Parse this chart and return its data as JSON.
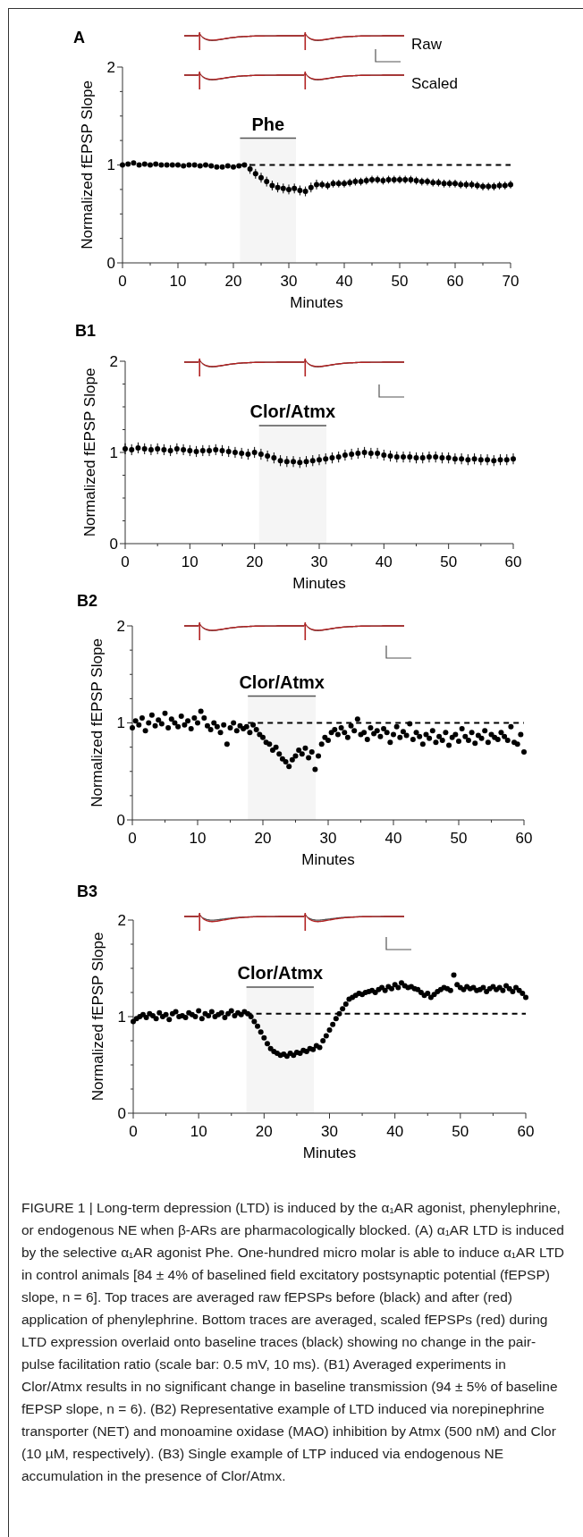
{
  "chart_data": [
    {
      "type": "scatter",
      "title": "A",
      "xlabel": "Minutes",
      "ylabel": "Normalized fEPSP Slope",
      "color": "#000000",
      "marker": "circle",
      "x": [
        0,
        1,
        2,
        3,
        4,
        5,
        6,
        7,
        8,
        9,
        10,
        11,
        12,
        13,
        14,
        15,
        16,
        17,
        18,
        19,
        20,
        21,
        22,
        23,
        24,
        25,
        26,
        27,
        28,
        29,
        30,
        31,
        32,
        33,
        34,
        35,
        36,
        37,
        38,
        39,
        40,
        41,
        42,
        43,
        44,
        45,
        46,
        47,
        48,
        49,
        50,
        51,
        52,
        53,
        54,
        55,
        56,
        57,
        58,
        59,
        60,
        61,
        62,
        63,
        64,
        65,
        66,
        67,
        68,
        69,
        70
      ],
      "values": [
        1.0,
        1.01,
        1.02,
        1.0,
        1.01,
        1.0,
        1.01,
        1.0,
        1.0,
        1.0,
        1.0,
        0.99,
        1.0,
        1.0,
        0.99,
        1.0,
        0.99,
        0.98,
        0.98,
        0.99,
        0.98,
        0.99,
        1.0,
        0.96,
        0.91,
        0.87,
        0.83,
        0.79,
        0.77,
        0.76,
        0.75,
        0.76,
        0.74,
        0.73,
        0.77,
        0.8,
        0.8,
        0.79,
        0.81,
        0.81,
        0.81,
        0.82,
        0.83,
        0.83,
        0.84,
        0.85,
        0.85,
        0.84,
        0.85,
        0.85,
        0.85,
        0.85,
        0.85,
        0.84,
        0.83,
        0.83,
        0.82,
        0.82,
        0.81,
        0.81,
        0.81,
        0.8,
        0.8,
        0.8,
        0.79,
        0.78,
        0.78,
        0.78,
        0.79,
        0.79,
        0.8
      ],
      "errors": [
        null,
        null,
        null,
        null,
        null,
        null,
        null,
        null,
        null,
        null,
        null,
        null,
        null,
        null,
        null,
        null,
        null,
        null,
        null,
        null,
        null,
        null,
        null,
        0.05,
        0.05,
        0.05,
        0.05,
        0.05,
        0.05,
        0.05,
        0.05,
        0.05,
        0.05,
        0.05,
        0.05,
        0.05,
        0.04,
        0.04,
        0.04,
        0.04,
        0.04,
        0.04,
        0.04,
        0.04,
        0.04,
        0.04,
        0.04,
        0.04,
        0.04,
        0.04,
        0.04,
        0.04,
        0.04,
        0.04,
        0.04,
        0.04,
        0.04,
        0.04,
        0.04,
        0.04,
        0.04,
        0.04,
        0.04,
        0.04,
        0.04,
        0.04,
        0.04,
        0.04,
        0.04,
        0.04,
        0.04
      ],
      "xlim": [
        0,
        70
      ],
      "ylim": [
        0,
        2
      ],
      "xticks": [
        0,
        {
          "value": 5,
          "label": null
        },
        10,
        {
          "value": 15,
          "label": null
        },
        20,
        {
          "value": 25,
          "label": null
        },
        30,
        {
          "value": 35,
          "label": null
        },
        40,
        {
          "value": 45,
          "label": null
        },
        50,
        {
          "value": 55,
          "label": null
        },
        60,
        {
          "value": 65,
          "label": null
        },
        70
      ],
      "yticks": [
        0,
        {
          "value": 0.25,
          "label": null
        },
        {
          "value": 0.5,
          "label": null
        },
        {
          "value": 0.75,
          "label": null
        },
        1,
        {
          "value": 1.25,
          "label": null
        },
        {
          "value": 1.5,
          "label": null
        },
        {
          "value": 1.75,
          "label": null
        },
        2
      ],
      "ref_lines": [
        {
          "axis": "y",
          "value": 1,
          "line_style": "dashed"
        }
      ],
      "bands": [
        {
          "axis": "x",
          "from": 21.2,
          "to": 31.3,
          "label": "Phe"
        }
      ],
      "annotations": [
        "Raw",
        "Scaled"
      ]
    },
    {
      "type": "scatter",
      "title": "B1",
      "xlabel": "Minutes",
      "ylabel": "Normalized fEPSP Slope",
      "color": "#000000",
      "marker": "circle",
      "x": [
        0,
        1,
        2,
        3,
        4,
        5,
        6,
        7,
        8,
        9,
        10,
        11,
        12,
        13,
        14,
        15,
        16,
        17,
        18,
        19,
        20,
        21,
        22,
        23,
        24,
        25,
        26,
        27,
        28,
        29,
        30,
        31,
        32,
        33,
        34,
        35,
        36,
        37,
        38,
        39,
        40,
        41,
        42,
        43,
        44,
        45,
        46,
        47,
        48,
        49,
        50,
        51,
        52,
        53,
        54,
        55,
        56,
        57,
        58,
        59,
        60
      ],
      "values": [
        1.04,
        1.03,
        1.05,
        1.04,
        1.03,
        1.04,
        1.03,
        1.02,
        1.04,
        1.03,
        1.02,
        1.01,
        1.02,
        1.02,
        1.03,
        1.02,
        1.01,
        1.0,
        0.99,
        0.98,
        1.0,
        0.98,
        0.96,
        0.94,
        0.91,
        0.9,
        0.9,
        0.89,
        0.9,
        0.91,
        0.92,
        0.93,
        0.94,
        0.95,
        0.97,
        0.98,
        0.99,
        1.0,
        0.99,
        0.99,
        0.97,
        0.96,
        0.95,
        0.95,
        0.95,
        0.94,
        0.94,
        0.95,
        0.95,
        0.94,
        0.94,
        0.93,
        0.93,
        0.92,
        0.93,
        0.92,
        0.92,
        0.91,
        0.92,
        0.92,
        0.93
      ],
      "errors": [
        0.06,
        0.06,
        0.06,
        0.06,
        0.06,
        0.06,
        0.06,
        0.06,
        0.06,
        0.06,
        0.06,
        0.06,
        0.06,
        0.06,
        0.06,
        0.06,
        0.06,
        0.06,
        0.06,
        0.06,
        0.06,
        0.06,
        0.06,
        0.06,
        0.06,
        0.06,
        0.06,
        0.06,
        0.06,
        0.06,
        0.06,
        0.06,
        0.06,
        0.06,
        0.06,
        0.06,
        0.06,
        0.06,
        0.06,
        0.06,
        0.06,
        0.06,
        0.06,
        0.06,
        0.06,
        0.06,
        0.06,
        0.06,
        0.06,
        0.06,
        0.06,
        0.06,
        0.06,
        0.06,
        0.06,
        0.06,
        0.06,
        0.06,
        0.06,
        0.06,
        0.06
      ],
      "xlim": [
        0,
        60
      ],
      "ylim": [
        0,
        2
      ],
      "xticks": [
        0,
        {
          "value": 5,
          "label": null
        },
        10,
        {
          "value": 15,
          "label": null
        },
        20,
        {
          "value": 25,
          "label": null
        },
        30,
        {
          "value": 35,
          "label": null
        },
        40,
        {
          "value": 45,
          "label": null
        },
        50,
        {
          "value": 55,
          "label": null
        },
        60
      ],
      "yticks": [
        0,
        {
          "value": 0.25,
          "label": null
        },
        {
          "value": 0.5,
          "label": null
        },
        {
          "value": 0.75,
          "label": null
        },
        1,
        {
          "value": 1.25,
          "label": null
        },
        {
          "value": 1.5,
          "label": null
        },
        {
          "value": 1.75,
          "label": null
        },
        2
      ],
      "bands": [
        {
          "axis": "x",
          "from": 20.7,
          "to": 31.1,
          "label": "Clor/Atmx"
        }
      ]
    },
    {
      "type": "scatter",
      "title": "B2",
      "xlabel": "Minutes",
      "ylabel": "Normalized fEPSP Slope",
      "color": "#000000",
      "marker": "circle",
      "x": [
        0,
        0.5,
        1,
        1.5,
        2,
        2.5,
        3,
        3.5,
        4,
        4.5,
        5,
        5.5,
        6,
        6.5,
        7,
        7.5,
        8,
        8.5,
        9,
        9.5,
        10,
        10.5,
        11,
        11.5,
        12,
        12.5,
        13,
        13.5,
        14,
        14.5,
        15,
        15.5,
        16,
        16.5,
        17,
        17.5,
        18,
        18.5,
        19,
        19.5,
        20,
        20.5,
        21,
        21.5,
        22,
        22.5,
        23,
        23.5,
        24,
        24.5,
        25,
        25.5,
        26,
        26.5,
        27,
        27.5,
        28,
        28.5,
        29,
        29.5,
        30,
        30.5,
        31,
        31.5,
        32,
        32.5,
        33,
        33.5,
        34,
        34.5,
        35,
        35.5,
        36,
        36.5,
        37,
        37.5,
        38,
        38.5,
        39,
        39.5,
        40,
        40.5,
        41,
        41.5,
        42,
        42.5,
        43,
        43.5,
        44,
        44.5,
        45,
        45.5,
        46,
        46.5,
        47,
        47.5,
        48,
        48.5,
        49,
        49.5,
        50,
        50.5,
        51,
        51.5,
        52,
        52.5,
        53,
        53.5,
        54,
        54.5,
        55,
        55.5,
        56,
        56.5,
        57,
        57.5,
        58,
        58.5,
        59,
        59.5,
        60
      ],
      "values": [
        0.95,
        1.02,
        0.98,
        1.05,
        0.92,
        1.0,
        1.08,
        0.97,
        1.03,
        0.99,
        1.1,
        0.95,
        1.04,
        1.0,
        0.96,
        1.07,
        0.98,
        1.02,
        0.94,
        1.05,
        1.0,
        1.12,
        1.05,
        0.97,
        0.93,
        1.0,
        0.96,
        0.9,
        0.98,
        0.78,
        0.95,
        1.0,
        0.92,
        0.97,
        0.94,
        0.96,
        0.9,
        0.98,
        0.93,
        0.88,
        0.85,
        0.8,
        0.78,
        0.72,
        0.75,
        0.68,
        0.63,
        0.6,
        0.55,
        0.62,
        0.66,
        0.72,
        0.68,
        0.74,
        0.64,
        0.7,
        0.52,
        0.66,
        0.78,
        0.85,
        0.82,
        0.9,
        0.93,
        0.88,
        0.95,
        0.9,
        0.85,
        0.97,
        0.92,
        1.04,
        0.88,
        0.9,
        0.83,
        0.95,
        0.89,
        0.92,
        0.86,
        0.94,
        0.9,
        0.8,
        0.88,
        0.96,
        0.85,
        0.91,
        0.87,
        0.99,
        0.83,
        0.9,
        0.86,
        0.78,
        0.88,
        0.84,
        0.92,
        0.8,
        0.86,
        0.82,
        0.9,
        0.77,
        0.85,
        0.88,
        0.81,
        0.94,
        0.86,
        0.82,
        0.9,
        0.79,
        0.87,
        0.84,
        0.92,
        0.8,
        0.88,
        0.85,
        0.83,
        0.9,
        0.86,
        0.82,
        0.96,
        0.8,
        0.78,
        0.88,
        0.7
      ],
      "xlim": [
        0,
        60
      ],
      "ylim": [
        0,
        2
      ],
      "xticks": [
        0,
        {
          "value": 5,
          "label": null
        },
        10,
        {
          "value": 15,
          "label": null
        },
        20,
        {
          "value": 25,
          "label": null
        },
        30,
        {
          "value": 35,
          "label": null
        },
        40,
        {
          "value": 45,
          "label": null
        },
        50,
        {
          "value": 55,
          "label": null
        },
        60
      ],
      "yticks": [
        0,
        {
          "value": 0.25,
          "label": null
        },
        {
          "value": 0.5,
          "label": null
        },
        {
          "value": 0.75,
          "label": null
        },
        1,
        {
          "value": 1.25,
          "label": null
        },
        {
          "value": 1.5,
          "label": null
        },
        {
          "value": 1.75,
          "label": null
        },
        2
      ],
      "ref_lines": [
        {
          "axis": "y",
          "value": 1,
          "line_style": "dashed"
        }
      ],
      "bands": [
        {
          "axis": "x",
          "from": 17.7,
          "to": 28.1,
          "label": "Clor/Atmx"
        }
      ]
    },
    {
      "type": "scatter",
      "title": "B3",
      "xlabel": "Minutes",
      "ylabel": "Normalized fEPSP Slope",
      "color": "#000000",
      "marker": "circle",
      "x": [
        0,
        0.5,
        1,
        1.5,
        2,
        2.5,
        3,
        3.5,
        4,
        4.5,
        5,
        5.5,
        6,
        6.5,
        7,
        7.5,
        8,
        8.5,
        9,
        9.5,
        10,
        10.5,
        11,
        11.5,
        12,
        12.5,
        13,
        13.5,
        14,
        14.5,
        15,
        15.5,
        16,
        16.5,
        17,
        17.5,
        18,
        18.5,
        19,
        19.5,
        20,
        20.5,
        21,
        21.5,
        22,
        22.5,
        23,
        23.5,
        24,
        24.5,
        25,
        25.5,
        26,
        26.5,
        27,
        27.5,
        28,
        28.5,
        29,
        29.5,
        30,
        30.5,
        31,
        31.5,
        32,
        32.5,
        33,
        33.5,
        34,
        34.5,
        35,
        35.5,
        36,
        36.5,
        37,
        37.5,
        38,
        38.5,
        39,
        39.5,
        40,
        40.5,
        41,
        41.5,
        42,
        42.5,
        43,
        43.5,
        44,
        44.5,
        45,
        45.5,
        46,
        46.5,
        47,
        47.5,
        48,
        48.5,
        49,
        49.5,
        50,
        50.5,
        51,
        51.5,
        52,
        52.5,
        53,
        53.5,
        54,
        54.5,
        55,
        55.5,
        56,
        56.5,
        57,
        57.5,
        58,
        58.5,
        59,
        59.5,
        60
      ],
      "values": [
        0.95,
        0.98,
        1.0,
        1.02,
        0.99,
        1.03,
        1.01,
        0.98,
        1.04,
        1.0,
        1.02,
        0.97,
        1.03,
        1.05,
        1.0,
        1.01,
        0.99,
        1.04,
        1.02,
        1.0,
        1.06,
        0.98,
        1.03,
        1.01,
        1.05,
        1.0,
        1.02,
        1.04,
        0.99,
        1.03,
        1.06,
        1.01,
        1.04,
        1.02,
        1.05,
        1.03,
        1.0,
        0.95,
        0.9,
        0.84,
        0.78,
        0.72,
        0.67,
        0.64,
        0.62,
        0.6,
        0.61,
        0.59,
        0.62,
        0.6,
        0.63,
        0.62,
        0.65,
        0.64,
        0.67,
        0.66,
        0.7,
        0.68,
        0.75,
        0.8,
        0.86,
        0.92,
        0.98,
        1.03,
        1.08,
        1.13,
        1.18,
        1.2,
        1.22,
        1.24,
        1.23,
        1.25,
        1.26,
        1.27,
        1.25,
        1.28,
        1.3,
        1.27,
        1.31,
        1.29,
        1.33,
        1.3,
        1.35,
        1.32,
        1.3,
        1.31,
        1.29,
        1.28,
        1.25,
        1.22,
        1.24,
        1.2,
        1.23,
        1.26,
        1.28,
        1.3,
        1.29,
        1.27,
        1.43,
        1.33,
        1.3,
        1.28,
        1.31,
        1.29,
        1.3,
        1.27,
        1.28,
        1.3,
        1.26,
        1.29,
        1.31,
        1.28,
        1.3,
        1.27,
        1.32,
        1.29,
        1.26,
        1.3,
        1.27,
        1.24,
        1.2
      ],
      "xlim": [
        0,
        60
      ],
      "ylim": [
        0,
        2
      ],
      "xticks": [
        0,
        {
          "value": 5,
          "label": null
        },
        10,
        {
          "value": 15,
          "label": null
        },
        20,
        {
          "value": 25,
          "label": null
        },
        30,
        {
          "value": 35,
          "label": null
        },
        40,
        {
          "value": 45,
          "label": null
        },
        50,
        {
          "value": 55,
          "label": null
        },
        60
      ],
      "yticks": [
        0,
        {
          "value": 0.25,
          "label": null
        },
        {
          "value": 0.5,
          "label": null
        },
        {
          "value": 0.75,
          "label": null
        },
        1,
        {
          "value": 1.25,
          "label": null
        },
        {
          "value": 1.5,
          "label": null
        },
        {
          "value": 1.75,
          "label": null
        },
        2
      ],
      "ref_lines": [
        {
          "axis": "y",
          "value": 1.03,
          "line_style": "dashed"
        }
      ],
      "bands": [
        {
          "axis": "x",
          "from": 17.3,
          "to": 27.6,
          "label": "Clor/Atmx"
        }
      ],
      "annotations": [
        "FIGURE 1 | Long-term depression (LTD) is induced by the α₁AR agonist, phenylephrine, or endogenous NE when β-ARs are pharmacologically blocked. (A) α₁AR LTD is induced by the selective α₁AR agonist Phe. One-hundred micro molar is able to induce α₁AR LTD in control animals [84 ± 4% of baselined field excitatory postsynaptic potential (fEPSP) slope, n = 6]. Top traces are averaged raw fEPSPs before (black) and after (red) application of phenylephrine. Bottom traces are averaged, scaled fEPSPs (red) during LTD expression overlaid onto baseline traces (black) showing no change in the pair-pulse facilitation ratio (scale bar: 0.5 mV, 10 ms). (B1) Averaged experiments in Clor/Atmx results in no significant change in baseline transmission (94 ± 5% of baseline fEPSP slope, n = 6). (B2) Representative example of LTD induced via norepinephrine transporter (NET) and monoamine oxidase (MAO) inhibition by Atmx (500 nM) and Clor (10 µM, respectively). (B3) Single example of LTP induced via endogenous NE accumulation in the presence of Clor/Atmx."
      ]
    }
  ]
}
